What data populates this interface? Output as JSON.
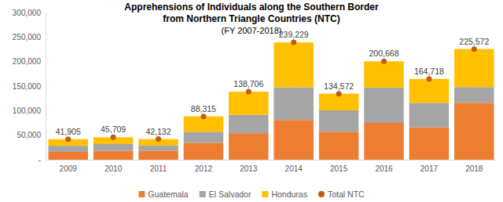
{
  "chart_data": {
    "type": "bar",
    "title": "Apprehensions of Individuals along the Southern Border\nfrom Northern Triangle Countries (NTC)",
    "subtitle": "(FY 2007-2018)",
    "categories": [
      "2009",
      "2010",
      "2011",
      "2012",
      "2013",
      "2014",
      "2015",
      "2016",
      "2017",
      "2018"
    ],
    "series": [
      {
        "name": "Guatemala",
        "color": "#ed7d31",
        "values": [
          16000,
          18000,
          18000,
          34500,
          54000,
          81000,
          57000,
          75000,
          66000,
          116000
        ]
      },
      {
        "name": "El Salvador",
        "color": "#a5a5a5",
        "values": [
          12500,
          14000,
          11000,
          22500,
          37500,
          66500,
          43500,
          72000,
          50000,
          32000
        ]
      },
      {
        "name": "Honduras",
        "color": "#ffc000",
        "values": [
          13400,
          13700,
          13100,
          31300,
          47200,
          91700,
          34100,
          53700,
          48700,
          77600
        ]
      },
      {
        "name": "Total NTC",
        "type": "scatter",
        "marker": "circle",
        "color": "#c55a11",
        "data_labels": true,
        "values": [
          41905,
          45709,
          42132,
          88315,
          138706,
          239229,
          134572,
          200668,
          164718,
          225572
        ],
        "value_labels": [
          "41,905",
          "45,709",
          "42,132",
          "88,315",
          "138,706",
          "239,229",
          "134,572",
          "200,668",
          "164,718",
          "225,572"
        ]
      }
    ],
    "stacked": true,
    "ylim": [
      0,
      300000
    ],
    "yticks": [
      {
        "value": 0,
        "label": "-"
      },
      {
        "value": 50000,
        "label": "50,000"
      },
      {
        "value": 100000,
        "label": "100,000"
      },
      {
        "value": 150000,
        "label": "150,000"
      },
      {
        "value": 200000,
        "label": "200,000"
      },
      {
        "value": 250000,
        "label": "250,000"
      },
      {
        "value": 300000,
        "label": "300,000"
      }
    ],
    "grid": false,
    "legend": "bottom"
  }
}
